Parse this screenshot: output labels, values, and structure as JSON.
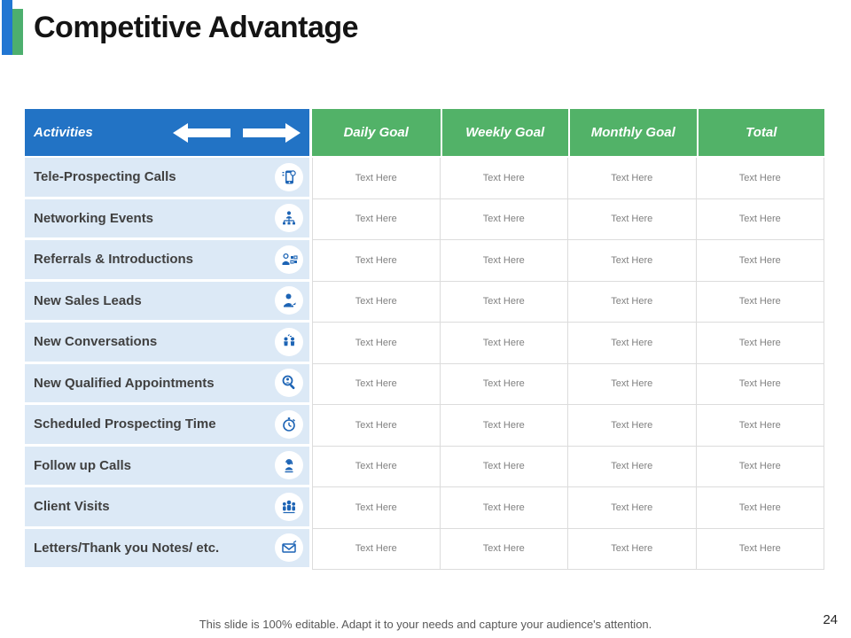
{
  "slide": {
    "title": "Competitive Advantage",
    "footer": "This slide is 100% editable. Adapt it to your needs and capture your audience's attention.",
    "page_number": "24"
  },
  "table": {
    "header": {
      "activities_label": "Activities",
      "arrow_icons": [
        "left-arrow-icon",
        "right-arrow-icon"
      ],
      "goal_columns": [
        "Daily Goal",
        "Weekly Goal",
        "Monthly Goal",
        "Total"
      ]
    },
    "rows": [
      {
        "label": "Tele-Prospecting Calls",
        "icon": "phone-icon",
        "values": [
          "Text Here",
          "Text Here",
          "Text Here",
          "Text Here"
        ]
      },
      {
        "label": "Networking Events",
        "icon": "network-icon",
        "values": [
          "Text Here",
          "Text Here",
          "Text Here",
          "Text Here"
        ]
      },
      {
        "label": "Referrals & Introductions",
        "icon": "referral-icon",
        "values": [
          "Text Here",
          "Text Here",
          "Text Here",
          "Text Here"
        ]
      },
      {
        "label": "New Sales Leads",
        "icon": "sales-lead-icon",
        "values": [
          "Text Here",
          "Text Here",
          "Text Here",
          "Text Here"
        ]
      },
      {
        "label": "New Conversations",
        "icon": "conversation-icon",
        "values": [
          "Text Here",
          "Text Here",
          "Text Here",
          "Text Here"
        ]
      },
      {
        "label": "New Qualified Appointments",
        "icon": "search-person-icon",
        "values": [
          "Text Here",
          "Text Here",
          "Text Here",
          "Text Here"
        ]
      },
      {
        "label": "Scheduled Prospecting Time",
        "icon": "stopwatch-icon",
        "values": [
          "Text Here",
          "Text Here",
          "Text Here",
          "Text Here"
        ]
      },
      {
        "label": "Follow up Calls",
        "icon": "headset-icon",
        "values": [
          "Text Here",
          "Text Here",
          "Text Here",
          "Text Here"
        ]
      },
      {
        "label": "Client Visits",
        "icon": "people-group-icon",
        "values": [
          "Text Here",
          "Text Here",
          "Text Here",
          "Text Here"
        ]
      },
      {
        "label": "Letters/Thank you Notes/ etc.",
        "icon": "letter-icon",
        "values": [
          "Text Here",
          "Text Here",
          "Text Here",
          "Text Here"
        ]
      }
    ]
  },
  "colors": {
    "header_blue": "#2273c5",
    "header_green": "#52b268",
    "row_light_blue": "#dce9f6",
    "accent_blue": "#2176d2",
    "accent_green": "#4daf6e",
    "icon_blue": "#1d64b5",
    "label_text": "#404040",
    "cell_text": "#808080",
    "footer_text": "#595959"
  }
}
